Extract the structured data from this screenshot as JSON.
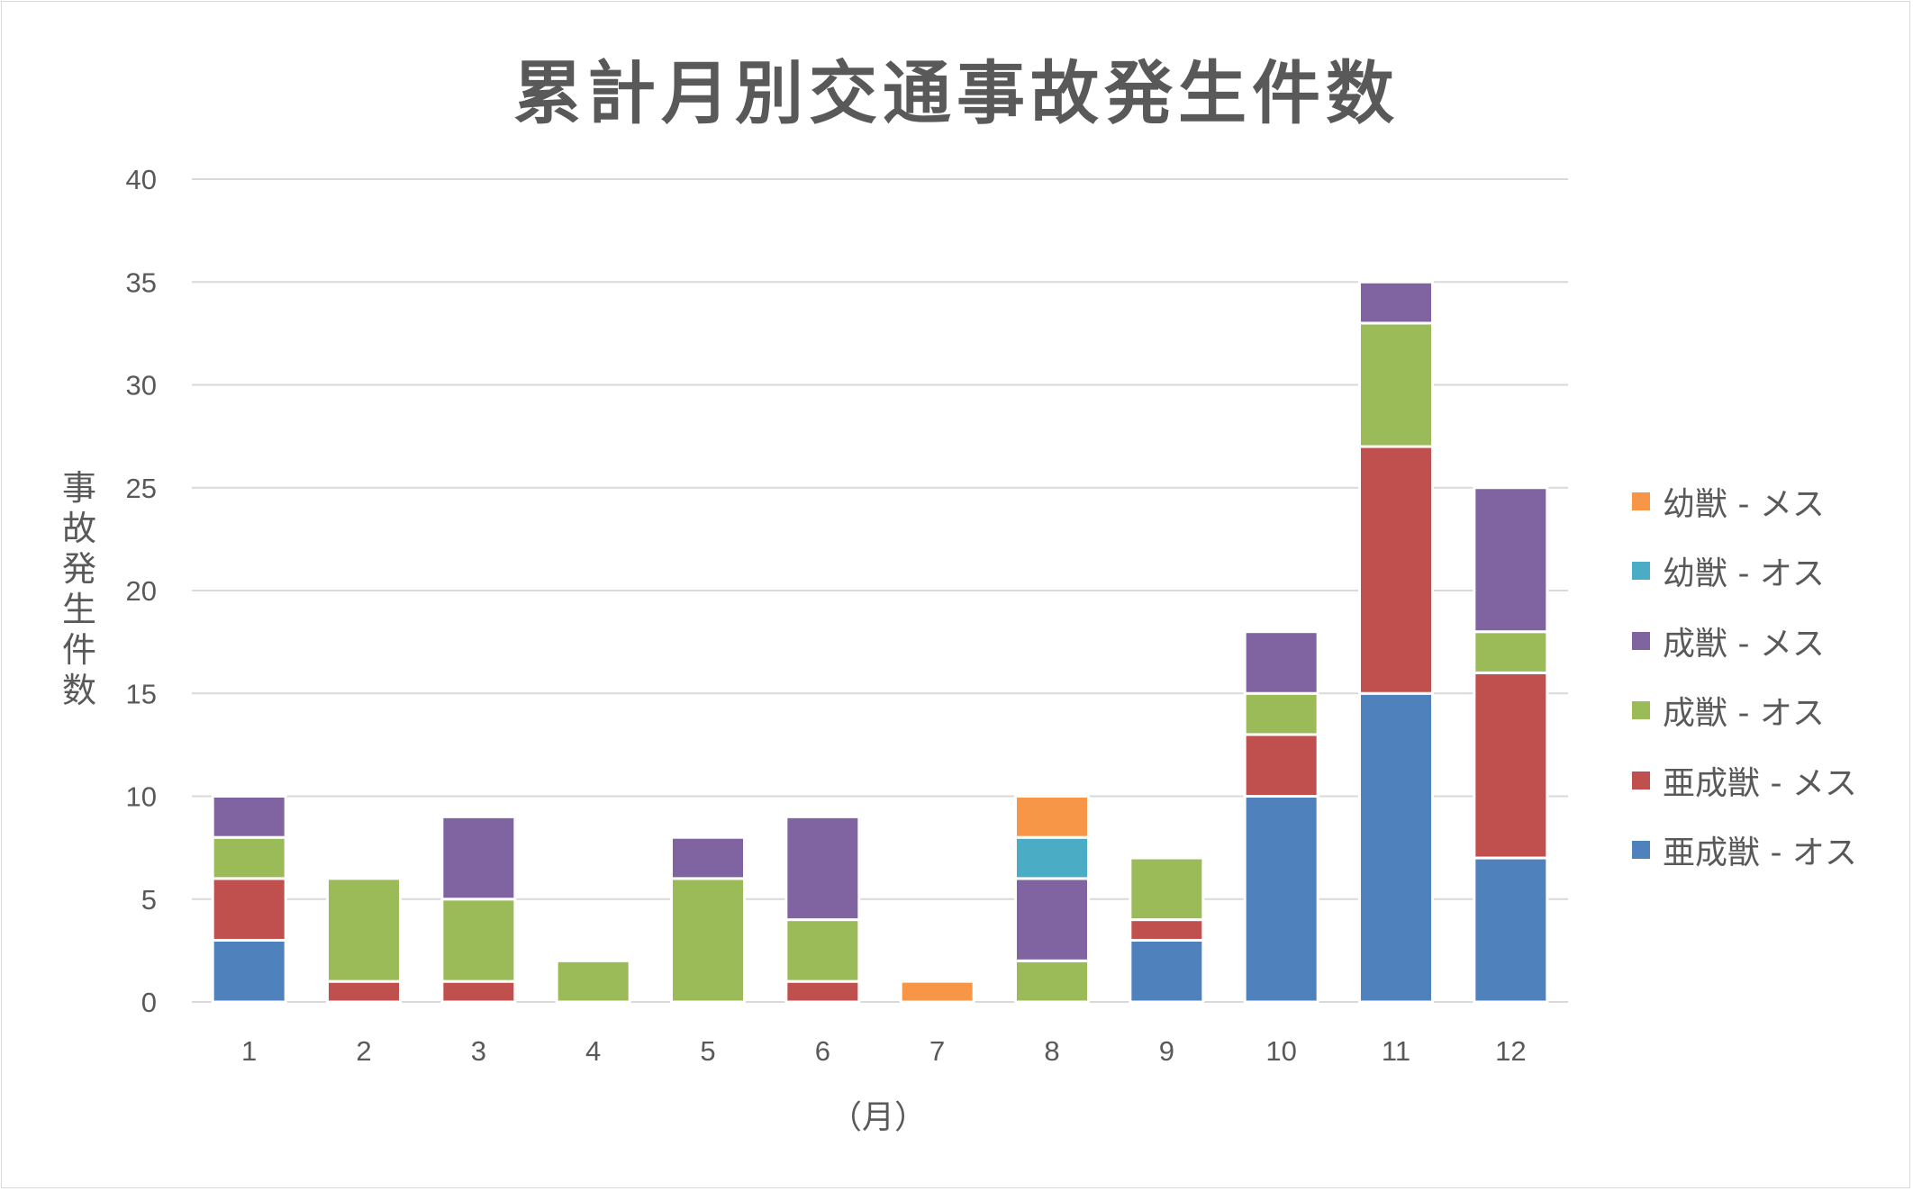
{
  "chart_data": {
    "type": "bar",
    "stacked": true,
    "title": "累計月別交通事故発生件数",
    "xlabel": "（月）",
    "ylabel": "事故発生件数",
    "ylim": [
      0,
      40
    ],
    "yticks": [
      0,
      5,
      10,
      15,
      20,
      25,
      30,
      35,
      40
    ],
    "grid": true,
    "legend_position": "right",
    "categories": [
      "1",
      "2",
      "3",
      "4",
      "5",
      "6",
      "7",
      "8",
      "9",
      "10",
      "11",
      "12"
    ],
    "series": [
      {
        "name": "亜成獣 - オス",
        "color": "#4f81bd",
        "values": [
          3,
          0,
          0,
          0,
          0,
          0,
          0,
          0,
          3,
          10,
          15,
          7
        ]
      },
      {
        "name": "亜成獣 - メス",
        "color": "#c0504d",
        "values": [
          3,
          1,
          1,
          0,
          0,
          1,
          0,
          0,
          1,
          3,
          12,
          9
        ]
      },
      {
        "name": "成獣 - オス",
        "color": "#9bbb59",
        "values": [
          2,
          5,
          4,
          2,
          6,
          3,
          0,
          2,
          3,
          2,
          6,
          2
        ]
      },
      {
        "name": "成獣 - メス",
        "color": "#8064a2",
        "values": [
          2,
          0,
          4,
          0,
          2,
          5,
          0,
          4,
          0,
          3,
          2,
          7
        ]
      },
      {
        "name": "幼獣 - オス",
        "color": "#4bacc6",
        "values": [
          0,
          0,
          0,
          0,
          0,
          0,
          0,
          2,
          0,
          0,
          0,
          0
        ]
      },
      {
        "name": "幼獣 - メス",
        "color": "#f79646",
        "values": [
          0,
          0,
          0,
          0,
          0,
          0,
          1,
          2,
          0,
          0,
          0,
          0
        ]
      }
    ]
  }
}
